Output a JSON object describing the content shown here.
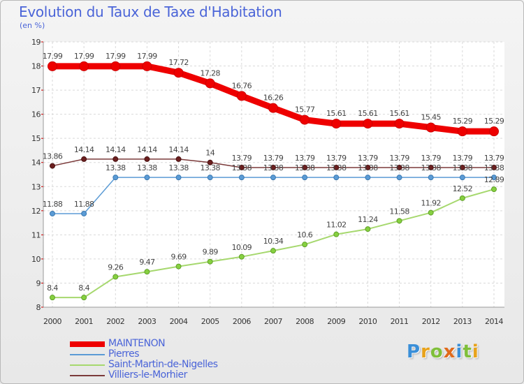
{
  "header": {
    "title": "Evolution du Taux de Taxe d'Habitation",
    "subtitle": "(en %)"
  },
  "logo": {
    "text": "Proxiti"
  },
  "chart_data": {
    "type": "line",
    "title": "Evolution du Taux de Taxe d'Habitation",
    "ylabel": "(en %)",
    "xlabel": "",
    "ylim": [
      8,
      19
    ],
    "yticks": [
      8,
      9,
      10,
      11,
      12,
      13,
      14,
      15,
      16,
      17,
      18,
      19
    ],
    "x": [
      "2000",
      "2001",
      "2002",
      "2003",
      "2004",
      "2005",
      "2006",
      "2007",
      "2008",
      "2009",
      "2010",
      "2011",
      "2012",
      "2013",
      "2014"
    ],
    "grid": true,
    "legend_position": "bottom-left",
    "series": [
      {
        "name": "MAINTENON",
        "color": "#ee0000",
        "values": [
          17.99,
          17.99,
          17.99,
          17.99,
          17.72,
          17.28,
          16.76,
          16.26,
          15.77,
          15.61,
          15.61,
          15.61,
          15.45,
          15.29,
          15.29
        ],
        "labels": [
          "17.99",
          "17.99",
          "17.99",
          "17.99",
          "17.72",
          "17.28",
          "16.76",
          "16.26",
          "15.77",
          "15.61",
          "15.61",
          "15.61",
          "15.45",
          "15.29",
          "15.29"
        ]
      },
      {
        "name": "Pierres",
        "color": "#5b9bd5",
        "values": [
          11.88,
          11.88,
          13.38,
          13.38,
          13.38,
          13.38,
          13.38,
          13.38,
          13.38,
          13.38,
          13.38,
          13.38,
          13.38,
          13.38,
          13.38
        ],
        "labels": [
          "11.88",
          "11.88",
          "13.38",
          "13.38",
          "13.38",
          "13.38",
          "13.38",
          "13.38",
          "13.38",
          "13.38",
          "13.38",
          "13.38",
          "13.38",
          "13.38",
          "13.38"
        ]
      },
      {
        "name": "Saint-Martin-de-Nigelles",
        "color": "#a6d86e",
        "values": [
          8.4,
          8.4,
          9.26,
          9.47,
          9.69,
          9.89,
          10.09,
          10.34,
          10.6,
          11.02,
          11.24,
          11.58,
          11.92,
          12.52,
          12.89
        ],
        "labels": [
          "8.4",
          "8.4",
          "9.26",
          "9.47",
          "9.69",
          "9.89",
          "10.09",
          "10.34",
          "10.6",
          "11.02",
          "11.24",
          "11.58",
          "11.92",
          "12.52",
          "12.89"
        ]
      },
      {
        "name": "Villiers-le-Morhier",
        "color": "#7b3a3a",
        "values": [
          13.86,
          14.14,
          14.14,
          14.14,
          14.14,
          14,
          13.79,
          13.79,
          13.79,
          13.79,
          13.79,
          13.79,
          13.79,
          13.79,
          13.79
        ],
        "labels": [
          "13.86",
          "14.14",
          "14.14",
          "14.14",
          "14.14",
          "14",
          "13.79",
          "13.79",
          "13.79",
          "13.79",
          "13.79",
          "13.79",
          "13.79",
          "13.79",
          "13.79"
        ]
      }
    ]
  }
}
